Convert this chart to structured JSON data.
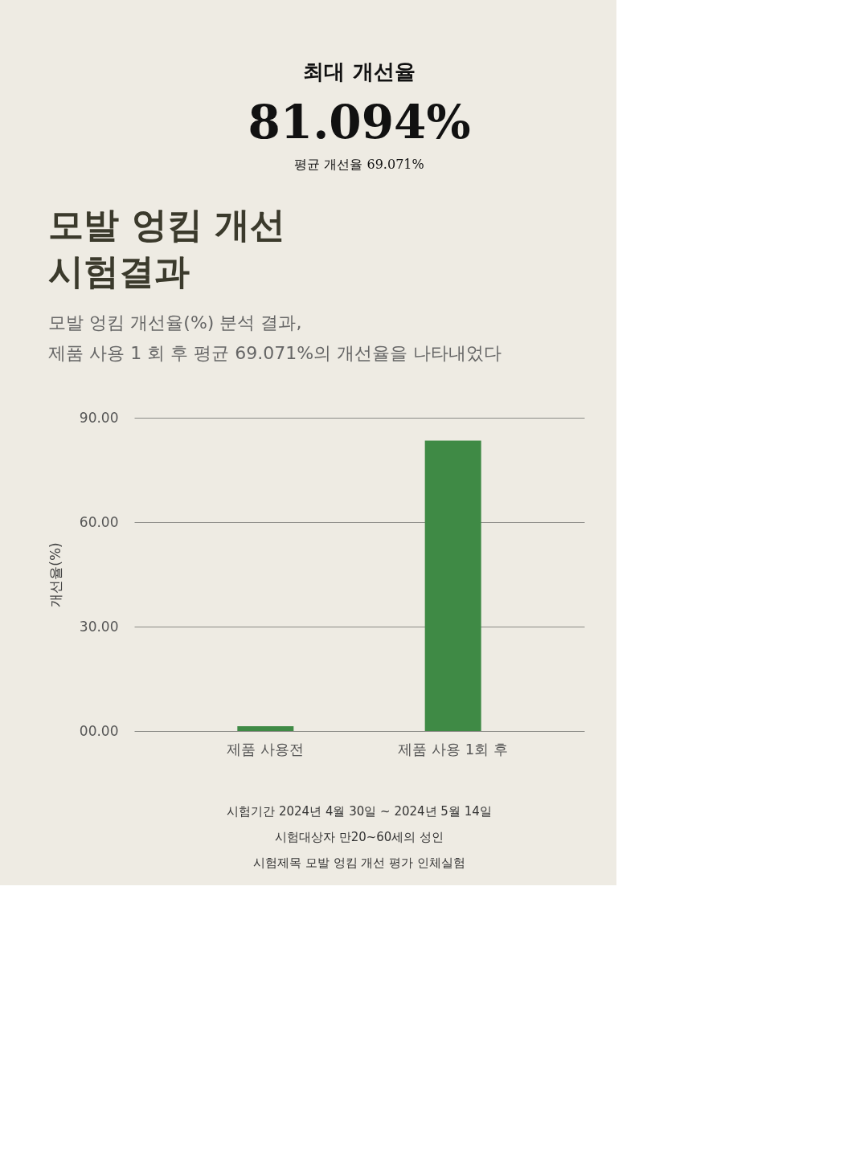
{
  "chart_data": [
    {
      "type": "bar",
      "title": [
        "모발 엉킴 개선",
        "시험결과"
      ],
      "subtitle": [
        "모발 엉킴 개선율(%) 분석 결과,",
        "제품 사용 1 회 후 평균 69.071%의 개선율을 나타내었다"
      ],
      "categories": [
        "제품 사용전",
        "제품 사용 1회 후"
      ],
      "values": [
        1.4,
        83.4
      ],
      "color": "#3f8a45",
      "ylabel": "개선율(%)",
      "ylim": [
        0,
        90
      ],
      "yticks": [
        {
          "value": 0,
          "label": "00.00"
        },
        {
          "value": 30,
          "label": "30.00"
        },
        {
          "value": 60,
          "label": "60.00"
        },
        {
          "value": 90,
          "label": "90.00"
        }
      ],
      "grid": "y",
      "annotations": [
        "시험기간 2024년 4월 30일 ~ 2024년 5월 14일",
        "시험대상자 만20~60세의 성인",
        "시험제목 모발 엉킴 개선 평가 인체실험"
      ]
    },
    {
      "type": "other",
      "title": "최대 개선율",
      "annotations": [
        "81.094%",
        "평균 개선율 69.071%"
      ]
    }
  ]
}
